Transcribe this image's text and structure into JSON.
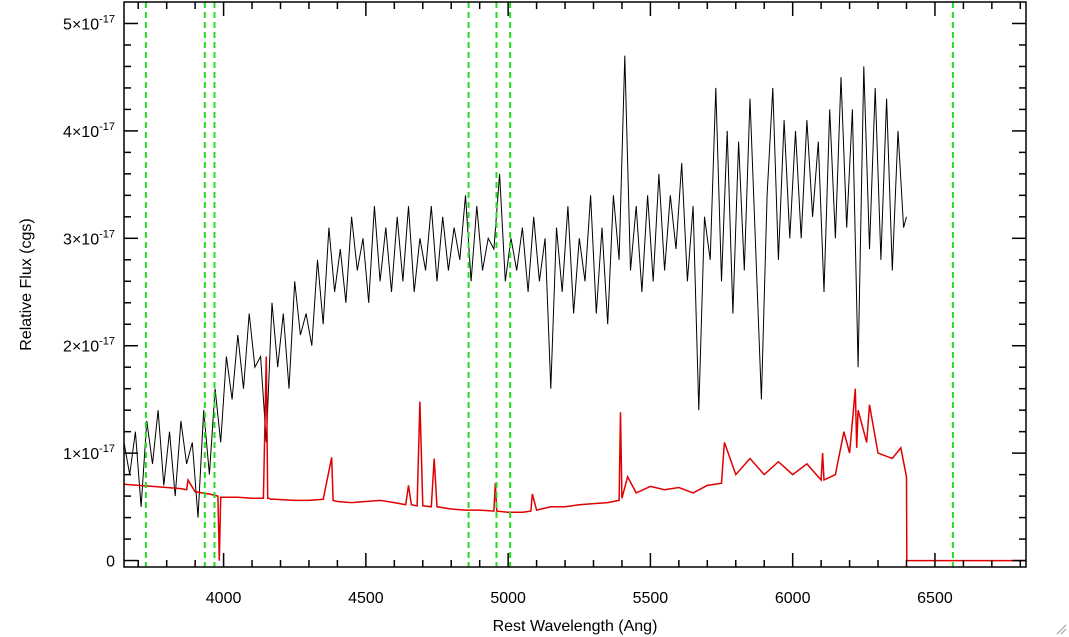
{
  "chart_data": {
    "type": "line",
    "title": "",
    "xlabel": "Rest Wavelength (Ang)",
    "ylabel": "Relative Flux (cgs)",
    "xlim": [
      3650,
      6820
    ],
    "ylim": [
      -6e-19,
      5.2e-17
    ],
    "x_ticks": [
      4000,
      4500,
      5000,
      5500,
      6000,
      6500
    ],
    "x_tick_labels": [
      "4000",
      "4500",
      "5000",
      "5500",
      "6000",
      "6500"
    ],
    "y_ticks": [
      {
        "value": 0,
        "base": "0",
        "exp": ""
      },
      {
        "value": 1e-17,
        "base": "1×10",
        "exp": "-17"
      },
      {
        "value": 2e-17,
        "base": "2×10",
        "exp": "-17"
      },
      {
        "value": 3e-17,
        "base": "3×10",
        "exp": "-17"
      },
      {
        "value": 4e-17,
        "base": "4×10",
        "exp": "-17"
      },
      {
        "value": 5e-17,
        "base": "5×10",
        "exp": "-17"
      }
    ],
    "vlines": [
      3727,
      3934,
      3968,
      4861,
      4959,
      5007,
      6563
    ],
    "grid": false,
    "series": [
      {
        "color": "#000000",
        "x": [
          3650,
          3670,
          3690,
          3710,
          3730,
          3750,
          3770,
          3790,
          3810,
          3830,
          3850,
          3870,
          3890,
          3910,
          3930,
          3950,
          3970,
          3990,
          4010,
          4030,
          4050,
          4070,
          4090,
          4110,
          4130,
          4150,
          4170,
          4190,
          4210,
          4230,
          4250,
          4270,
          4290,
          4310,
          4330,
          4350,
          4370,
          4390,
          4410,
          4430,
          4450,
          4470,
          4490,
          4510,
          4530,
          4550,
          4570,
          4590,
          4610,
          4630,
          4650,
          4670,
          4690,
          4710,
          4730,
          4750,
          4770,
          4790,
          4810,
          4830,
          4850,
          4870,
          4890,
          4910,
          4930,
          4950,
          4970,
          4990,
          5010,
          5030,
          5050,
          5070,
          5090,
          5110,
          5130,
          5150,
          5170,
          5190,
          5210,
          5230,
          5250,
          5270,
          5290,
          5310,
          5330,
          5350,
          5370,
          5390,
          5410,
          5430,
          5450,
          5470,
          5490,
          5510,
          5530,
          5550,
          5570,
          5590,
          5610,
          5630,
          5650,
          5670,
          5690,
          5710,
          5730,
          5750,
          5770,
          5790,
          5810,
          5830,
          5850,
          5870,
          5890,
          5910,
          5930,
          5950,
          5970,
          5990,
          6010,
          6030,
          6050,
          6070,
          6090,
          6110,
          6130,
          6150,
          6170,
          6190,
          6210,
          6230,
          6250,
          6270,
          6290,
          6310,
          6330,
          6350,
          6370,
          6390,
          6400
        ],
        "y": [
          1.1e-17,
          8e-18,
          1.2e-17,
          5e-18,
          1.3e-17,
          9e-18,
          1.4e-17,
          7e-18,
          1.2e-17,
          6e-18,
          1.3e-17,
          9e-18,
          1.1e-17,
          4e-18,
          1.4e-17,
          8e-18,
          1.6e-17,
          1.1e-17,
          1.9e-17,
          1.5e-17,
          2.1e-17,
          1.6e-17,
          2.3e-17,
          1.8e-17,
          1.9e-17,
          1.1e-17,
          2.4e-17,
          1.8e-17,
          2.3e-17,
          1.6e-17,
          2.6e-17,
          2.1e-17,
          2.3e-17,
          2e-17,
          2.8e-17,
          2.2e-17,
          3.1e-17,
          2.5e-17,
          2.9e-17,
          2.4e-17,
          3.2e-17,
          2.7e-17,
          3e-17,
          2.4e-17,
          3.3e-17,
          2.6e-17,
          3.1e-17,
          2.5e-17,
          3.2e-17,
          2.6e-17,
          3.3e-17,
          2.5e-17,
          3e-17,
          2.7e-17,
          3.3e-17,
          2.6e-17,
          3.2e-17,
          2.7e-17,
          3.1e-17,
          2.8e-17,
          3.4e-17,
          2.6e-17,
          3.3e-17,
          2.7e-17,
          3e-17,
          2.9e-17,
          3.6e-17,
          2.6e-17,
          3e-17,
          2.7e-17,
          3.1e-17,
          2.5e-17,
          3.2e-17,
          2.6e-17,
          3e-17,
          1.6e-17,
          3.1e-17,
          2.5e-17,
          3.3e-17,
          2.3e-17,
          3e-17,
          2.6e-17,
          3.4e-17,
          2.3e-17,
          3.1e-17,
          2.2e-17,
          3.4e-17,
          2.8e-17,
          4.7e-17,
          2.7e-17,
          3.3e-17,
          2.5e-17,
          3.4e-17,
          2.6e-17,
          3.6e-17,
          2.7e-17,
          3.4e-17,
          2.9e-17,
          3.7e-17,
          2.6e-17,
          3.3e-17,
          1.4e-17,
          3.2e-17,
          2.8e-17,
          4.4e-17,
          2.6e-17,
          4e-17,
          2.3e-17,
          3.9e-17,
          2.7e-17,
          4.3e-17,
          2.9e-17,
          1.5e-17,
          3.4e-17,
          4.4e-17,
          2.8e-17,
          4.1e-17,
          3e-17,
          4e-17,
          3e-17,
          4.1e-17,
          3.2e-17,
          3.9e-17,
          2.5e-17,
          4.2e-17,
          3e-17,
          4.5e-17,
          3.1e-17,
          4.2e-17,
          1.8e-17,
          4.6e-17,
          2.9e-17,
          4.4e-17,
          2.8e-17,
          4.3e-17,
          2.7e-17,
          4e-17,
          3.1e-17,
          3.2e-17
        ]
      },
      {
        "color": "#e00000",
        "x": [
          3650,
          3700,
          3750,
          3800,
          3850,
          3870,
          3875,
          3900,
          3950,
          3980,
          3985,
          3990,
          4000,
          4050,
          4100,
          4140,
          4150,
          4155,
          4160,
          4165,
          4180,
          4250,
          4300,
          4350,
          4380,
          4385,
          4400,
          4450,
          4500,
          4550,
          4600,
          4640,
          4650,
          4660,
          4680,
          4690,
          4700,
          4730,
          4740,
          4750,
          4800,
          4850,
          4900,
          4950,
          4955,
          4960,
          5000,
          5050,
          5080,
          5085,
          5100,
          5150,
          5200,
          5250,
          5300,
          5350,
          5390,
          5395,
          5400,
          5420,
          5450,
          5500,
          5550,
          5600,
          5650,
          5700,
          5750,
          5760,
          5800,
          5850,
          5900,
          5950,
          6000,
          6050,
          6100,
          6105,
          6110,
          6150,
          6180,
          6200,
          6220,
          6225,
          6230,
          6260,
          6270,
          6300,
          6350,
          6380,
          6400,
          6401,
          6820
        ],
        "y": [
          7.1e-18,
          7e-18,
          6.9e-18,
          6.8e-18,
          6.7e-18,
          6.6e-18,
          7.5e-18,
          6.4e-18,
          6.2e-18,
          6e-18,
          0,
          5.9e-18,
          5.9e-18,
          5.9e-18,
          5.8e-18,
          5.8e-18,
          1.9e-17,
          5.8e-18,
          5.8e-18,
          5.7e-18,
          5.7e-18,
          5.6e-18,
          5.6e-18,
          5.7e-18,
          9.6e-18,
          5.6e-18,
          5.5e-18,
          5.4e-18,
          5.5e-18,
          5.6e-18,
          5.4e-18,
          5.2e-18,
          7e-18,
          5.2e-18,
          5.1e-18,
          1.48e-17,
          5.1e-18,
          5e-18,
          9.5e-18,
          5e-18,
          4.8e-18,
          4.7e-18,
          4.7e-18,
          4.6e-18,
          7.2e-18,
          4.6e-18,
          4.5e-18,
          4.5e-18,
          4.6e-18,
          6.2e-18,
          4.7e-18,
          5e-18,
          5e-18,
          5.2e-18,
          5.3e-18,
          5.4e-18,
          5.6e-18,
          1.38e-17,
          5.8e-18,
          7.8e-18,
          6.3e-18,
          6.9e-18,
          6.6e-18,
          6.8e-18,
          6.3e-18,
          7e-18,
          7.2e-18,
          1.1e-17,
          8e-18,
          9.5e-18,
          8e-18,
          9.2e-18,
          8e-18,
          9e-18,
          7.5e-18,
          1e-17,
          7.5e-18,
          8e-18,
          1.2e-17,
          1e-17,
          1.6e-17,
          1.05e-17,
          1.4e-17,
          1.1e-17,
          1.45e-17,
          1e-17,
          9.5e-18,
          1.05e-17,
          7.8e-18,
          0,
          0
        ]
      }
    ]
  },
  "icons": {
    "resize": "resize-grip-icon"
  }
}
